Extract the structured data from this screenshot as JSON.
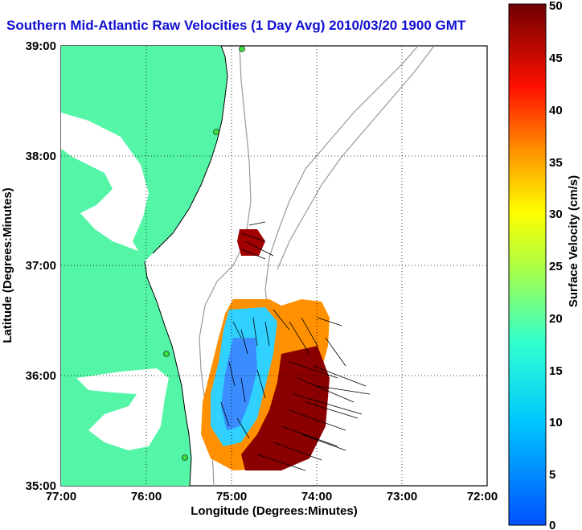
{
  "title": "Southern Mid-Atlantic Raw Velocities (1 Day Avg) 2010/03/20 1900 GMT",
  "xaxis": {
    "label": "Longitude (Degrees:Minutes)",
    "ticks": [
      "77:00",
      "76:00",
      "75:00",
      "74:00",
      "73:00",
      "72:00"
    ]
  },
  "yaxis": {
    "label": "Latitude (Degrees:Minutes)",
    "ticks": [
      "39:00",
      "38:00",
      "37:00",
      "36:00",
      "35:00"
    ]
  },
  "colorbar": {
    "label": "Surface Velocity (cm/s)",
    "ticks": [
      "50",
      "45",
      "40",
      "35",
      "30",
      "25",
      "20",
      "15",
      "10",
      "5",
      "0"
    ],
    "min": 0,
    "max": 50
  },
  "map": {
    "land_color": "#55f5a8",
    "water_color": "#ffffff",
    "grid": "dotted",
    "stations": [
      "station",
      "station",
      "station",
      "station",
      "station"
    ]
  }
}
